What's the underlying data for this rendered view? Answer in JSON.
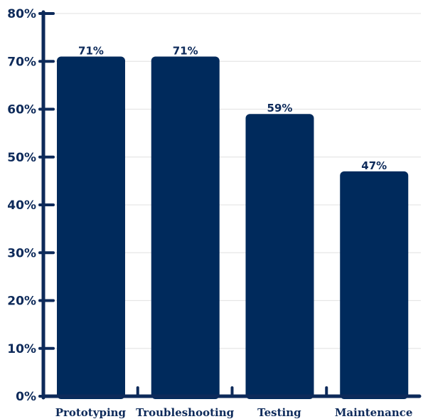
{
  "chart_data": {
    "type": "bar",
    "categories": [
      "Prototyping",
      "Troubleshooting",
      "Testing",
      "Maintenance"
    ],
    "values": [
      71,
      71,
      59,
      47
    ],
    "value_labels": [
      "71%",
      "71%",
      "59%",
      "47%"
    ],
    "title": "",
    "xlabel": "",
    "ylabel": "",
    "ylim": [
      0,
      80
    ],
    "yticks": [
      0,
      10,
      20,
      30,
      40,
      50,
      60,
      70,
      80
    ],
    "ytick_labels": [
      "0%",
      "10%",
      "20%",
      "30%",
      "40%",
      "50%",
      "60%",
      "70%",
      "80%"
    ],
    "grid": true,
    "colors": {
      "bar": "#002a5c",
      "axis": "#0d2a5a",
      "grid": "#e6e6e6",
      "text": "#0d2a5a"
    }
  }
}
